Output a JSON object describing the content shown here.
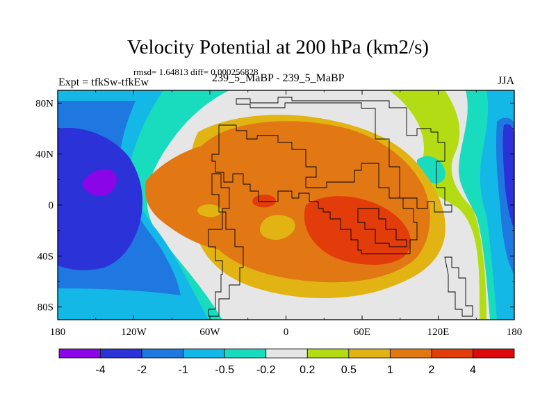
{
  "title": "Velocity Potential at 200 hPa (km2/s)",
  "stats": "rmsd= 1.64813 diff= 0.000256828",
  "left_label": "Expt = tfkSw-tfkEw",
  "center_label": "239_5_MaBP - 239_5_MaBP",
  "right_label": "JJA",
  "colors": {
    "levels": [
      "#8a05e8",
      "#2a32d8",
      "#1e78e0",
      "#14b8e6",
      "#19dcbe",
      "#e6e6e6",
      "#b4dc14",
      "#e1b414",
      "#e17814",
      "#e13c0a",
      "#dc0a0a"
    ],
    "frame": "#000000"
  },
  "chart_data": {
    "type": "heatmap",
    "projection": "cylindrical-equidistant",
    "variable": "Velocity potential at 200 hPa",
    "units": "km2/s",
    "season": "JJA",
    "x_range": [
      -180,
      180
    ],
    "y_range": [
      -90,
      90
    ],
    "x_ticks": [
      -180,
      -120,
      -60,
      0,
      60,
      120,
      180
    ],
    "x_tick_labels": [
      "180",
      "120W",
      "60W",
      "0",
      "60E",
      "120E",
      "180"
    ],
    "y_ticks": [
      80,
      40,
      0,
      -40,
      -80
    ],
    "y_tick_labels": [
      "80N",
      "40N",
      "0",
      "40S",
      "80S"
    ],
    "contour_levels": [
      -4,
      -2,
      -1,
      -0.5,
      -0.2,
      0.2,
      0.5,
      1,
      2,
      4
    ],
    "colorbar_labels": [
      "-4",
      "-2",
      "-1",
      "-0.5",
      "-0.2",
      "0.2",
      "0.5",
      "1",
      "2",
      "4"
    ],
    "field_features": [
      {
        "name": "negative-center",
        "lon": -140,
        "lat": 15,
        "value": -4.3
      },
      {
        "name": "negative-east",
        "lon": 175,
        "lat": 5,
        "value": -2.2
      },
      {
        "name": "positive-center",
        "lon": 70,
        "lat": -15,
        "value": 3.2
      },
      {
        "name": "positive-sub",
        "lon": -15,
        "lat": 5,
        "value": 2.2
      }
    ]
  }
}
